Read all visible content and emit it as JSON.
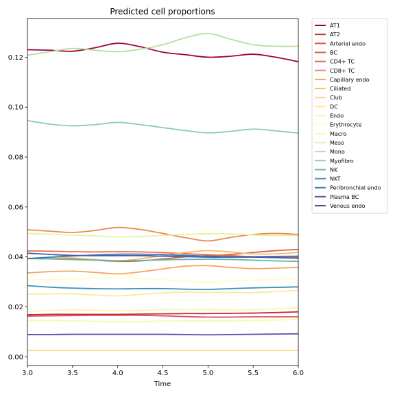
{
  "chart_data": {
    "type": "line",
    "title": "Predicted cell proportions",
    "xlabel": "Time",
    "ylabel": "",
    "xlim": [
      3.0,
      6.0
    ],
    "ylim": [
      -0.0035,
      0.1355
    ],
    "xticks": [
      3.0,
      3.5,
      4.0,
      4.5,
      5.0,
      5.5,
      6.0
    ],
    "xtick_labels": [
      "3.0",
      "3.5",
      "4.0",
      "4.5",
      "5.0",
      "5.5",
      "6.0"
    ],
    "yticks": [
      0.0,
      0.02,
      0.04,
      0.06,
      0.08,
      0.1,
      0.12
    ],
    "ytick_labels": [
      "0.00",
      "0.02",
      "0.04",
      "0.06",
      "0.08",
      "0.10",
      "0.12"
    ],
    "grid": false,
    "legend_position": "outside-right",
    "x": [
      3.0,
      3.25,
      3.5,
      3.75,
      4.0,
      4.25,
      4.5,
      4.75,
      5.0,
      5.25,
      5.5,
      5.75,
      6.0
    ],
    "series": [
      {
        "name": "AT1",
        "color": "#9e0142",
        "values": [
          0.123,
          0.1228,
          0.1224,
          0.1238,
          0.1256,
          0.1242,
          0.122,
          0.121,
          0.12,
          0.1204,
          0.1212,
          0.12,
          0.1182
        ]
      },
      {
        "name": "AT2",
        "color": "#c2294a",
        "values": [
          0.0168,
          0.017,
          0.017,
          0.017,
          0.017,
          0.0171,
          0.0172,
          0.0173,
          0.0173,
          0.0174,
          0.0175,
          0.0177,
          0.018
        ]
      },
      {
        "name": "Arterial endo",
        "color": "#e1524a",
        "values": [
          0.0163,
          0.0164,
          0.0165,
          0.0166,
          0.0166,
          0.0166,
          0.0164,
          0.0161,
          0.0159,
          0.0159,
          0.016,
          0.016,
          0.016
        ]
      },
      {
        "name": "BC",
        "color": "#d8623a",
        "values": [
          0.0394,
          0.0394,
          0.0392,
          0.0387,
          0.0382,
          0.0384,
          0.0392,
          0.04,
          0.0405,
          0.041,
          0.0418,
          0.0425,
          0.043
        ]
      },
      {
        "name": "CD4+ TC",
        "color": "#ea6b48",
        "values": [
          0.0424,
          0.0423,
          0.0421,
          0.042,
          0.0421,
          0.042,
          0.0417,
          0.0413,
          0.0409,
          0.0405,
          0.0401,
          0.0399,
          0.0398
        ]
      },
      {
        "name": "CD8+ TC",
        "color": "#ef8650",
        "values": [
          0.0509,
          0.0503,
          0.0498,
          0.0506,
          0.0518,
          0.051,
          0.0494,
          0.0477,
          0.0464,
          0.0478,
          0.049,
          0.0494,
          0.049
        ]
      },
      {
        "name": "Capillary endo",
        "color": "#f6a45c",
        "values": [
          0.0336,
          0.0341,
          0.0343,
          0.0338,
          0.0332,
          0.034,
          0.0352,
          0.0363,
          0.0365,
          0.0358,
          0.0353,
          0.0355,
          0.0358
        ]
      },
      {
        "name": "Ciliated",
        "color": "#f9bb6d",
        "values": [
          0.0395,
          0.0396,
          0.0396,
          0.039,
          0.0384,
          0.0393,
          0.0405,
          0.0418,
          0.0425,
          0.042,
          0.0412,
          0.0412,
          0.0418
        ]
      },
      {
        "name": "Club",
        "color": "#fdd582",
        "values": [
          0.0025,
          0.0025,
          0.0025,
          0.0025,
          0.0025,
          0.0025,
          0.0025,
          0.0025,
          0.0025,
          0.0025,
          0.0025,
          0.0025,
          0.0025
        ]
      },
      {
        "name": "DC",
        "color": "#fee898",
        "values": [
          0.0251,
          0.0252,
          0.0252,
          0.0247,
          0.0244,
          0.025,
          0.0256,
          0.0259,
          0.0258,
          0.0257,
          0.0257,
          0.0261,
          0.0266
        ]
      },
      {
        "name": "Endo",
        "color": "#fff5ad",
        "values": [
          0.0182,
          0.0185,
          0.0188,
          0.0186,
          0.0184,
          0.0186,
          0.0189,
          0.019,
          0.0189,
          0.0188,
          0.0188,
          0.0192,
          0.0197
        ]
      },
      {
        "name": "Erythrocyte",
        "color": "#ffffbe",
        "values": [
          0.0308,
          0.031,
          0.0311,
          0.0314,
          0.0315,
          0.0313,
          0.0308,
          0.0303,
          0.03,
          0.0303,
          0.0307,
          0.031,
          0.0313
        ]
      },
      {
        "name": "Macro",
        "color": "#f6fba8",
        "values": [
          0.0145,
          0.0145,
          0.0144,
          0.0142,
          0.014,
          0.0141,
          0.0143,
          0.0144,
          0.0144,
          0.0144,
          0.0145,
          0.0147,
          0.015
        ]
      },
      {
        "name": "Meso",
        "color": "#e4f49a",
        "values": [
          0.0494,
          0.0491,
          0.0488,
          0.0484,
          0.048,
          0.0482,
          0.0486,
          0.049,
          0.0493,
          0.0492,
          0.0488,
          0.0486,
          0.0485
        ]
      },
      {
        "name": "Mono",
        "color": "#b5df9c",
        "values": [
          0.1208,
          0.1222,
          0.1235,
          0.1228,
          0.1222,
          0.1232,
          0.125,
          0.1278,
          0.1295,
          0.1272,
          0.125,
          0.1244,
          0.1244
        ]
      },
      {
        "name": "Myofibro",
        "color": "#88d0a4",
        "values": [
          0.0946,
          0.0932,
          0.0925,
          0.093,
          0.0939,
          0.093,
          0.0918,
          0.0906,
          0.0897,
          0.0903,
          0.0912,
          0.0905,
          0.0896
        ]
      },
      {
        "name": "NK",
        "color": "#5db6aa",
        "values": [
          0.0393,
          0.0392,
          0.0389,
          0.0387,
          0.0385,
          0.0386,
          0.0388,
          0.039,
          0.0391,
          0.039,
          0.0387,
          0.0384,
          0.0382
        ]
      },
      {
        "name": "NKT",
        "color": "#3a94b5",
        "values": [
          0.0285,
          0.0279,
          0.0275,
          0.0273,
          0.0272,
          0.0273,
          0.0273,
          0.0271,
          0.027,
          0.0273,
          0.0276,
          0.0278,
          0.028
        ]
      },
      {
        "name": "Peribronchial endo",
        "color": "#3f76b4",
        "values": [
          0.0393,
          0.0399,
          0.0404,
          0.0408,
          0.0411,
          0.0411,
          0.0409,
          0.0406,
          0.0403,
          0.0401,
          0.0401,
          0.0402,
          0.0403
        ]
      },
      {
        "name": "Plasma BC",
        "color": "#4c5ca8",
        "values": [
          0.0415,
          0.041,
          0.0406,
          0.0405,
          0.0405,
          0.0405,
          0.0403,
          0.0401,
          0.0399,
          0.0399,
          0.0399,
          0.0397,
          0.0395
        ]
      },
      {
        "name": "Venous endo",
        "color": "#5e4fa2",
        "values": [
          0.0089,
          0.0089,
          0.009,
          0.009,
          0.009,
          0.009,
          0.009,
          0.0089,
          0.0088,
          0.0089,
          0.009,
          0.0091,
          0.0092
        ]
      }
    ]
  }
}
